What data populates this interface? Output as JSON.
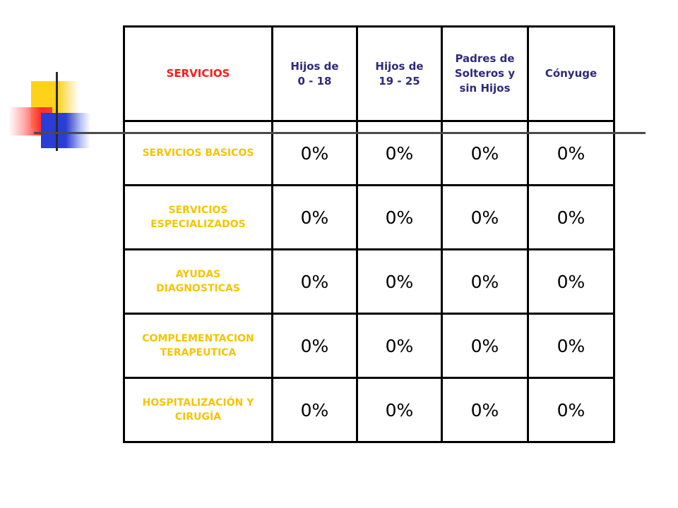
{
  "table": {
    "headers": [
      "SERVICIOS",
      "Hijos de\n0 - 18",
      "Hijos de\n19 - 25",
      "Padres de\nSolteros y\nsin Hijos",
      "Cónyuge"
    ],
    "rows": [
      {
        "label": "SERVICIOS BASICOS",
        "values": [
          "0%",
          "0%",
          "0%",
          "0%"
        ]
      },
      {
        "label": "SERVICIOS\nESPECIALIZADOS",
        "values": [
          "0%",
          "0%",
          "0%",
          "0%"
        ]
      },
      {
        "label": "AYUDAS\nDIAGNOSTICAS",
        "values": [
          "0%",
          "0%",
          "0%",
          "0%"
        ]
      },
      {
        "label": "COMPLEMENTACION\nTERAPEUTICA",
        "values": [
          "0%",
          "0%",
          "0%",
          "0%"
        ]
      },
      {
        "label": "HOSPITALIZACIÓN Y\nCIRUGÍA",
        "values": [
          "0%",
          "0%",
          "0%",
          "0%"
        ]
      }
    ]
  },
  "colors": {
    "first_header": "#ff1a1a",
    "other_headers": "#2e2a7a",
    "row_labels": "#f5c400",
    "values": "#000000"
  }
}
